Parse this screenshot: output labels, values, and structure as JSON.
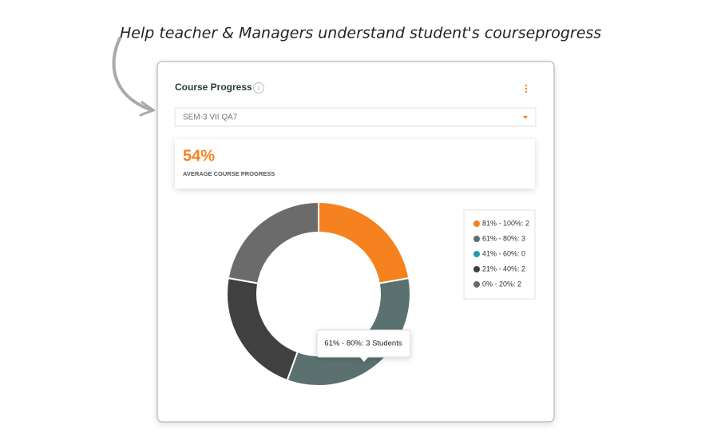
{
  "annotation": "Help teacher & Managers understand student's courseprogress",
  "card": {
    "title": "Course Progress",
    "info_icon": "i",
    "selector": "SEM-3 VII QA7",
    "kpi": {
      "value": "54%",
      "label": "AVERAGE COURSE PROGRESS"
    }
  },
  "chart_data": {
    "type": "donut",
    "categories": [
      "81% - 100%",
      "61% - 80%",
      "41% - 60%",
      "21% - 40%",
      "0% - 20%"
    ],
    "values": [
      2,
      3,
      0,
      2,
      2
    ],
    "legend_labels": [
      "81% - 100%: 2",
      "61% - 80%: 3",
      "41% - 60%: 0",
      "21% - 40%: 2",
      "0% - 20%: 2"
    ],
    "colors": [
      "#f5821f",
      "#5b7170",
      "#1aa1a8",
      "#404040",
      "#6b6b6b"
    ],
    "tooltip": "61% - 80%: 3 Students"
  }
}
